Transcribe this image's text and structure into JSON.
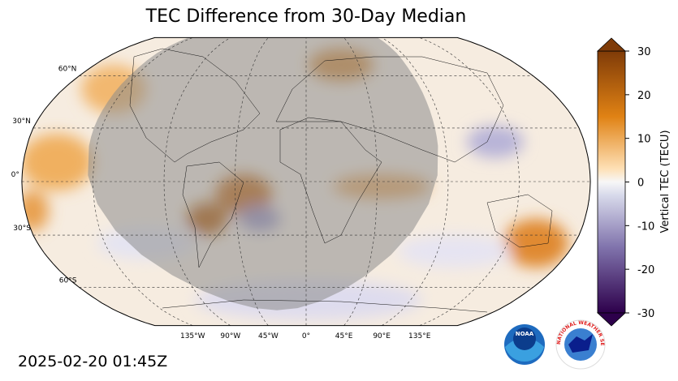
{
  "map": {
    "title": "TEC Difference from 30-Day Median",
    "timestamp": "2025-02-20 01:45Z",
    "latitude_labels": [
      "60°N",
      "30°N",
      "0°",
      "30°S",
      "60°S"
    ],
    "longitude_labels": [
      "135°W",
      "90°W",
      "45°W",
      "0°",
      "45°E",
      "90°E",
      "135°E"
    ]
  },
  "colorbar": {
    "label": "Vertical TEC (TECU)",
    "range": [
      -30,
      30
    ],
    "ticks": [
      -30,
      -20,
      -10,
      0,
      10,
      20,
      30
    ]
  },
  "logos": {
    "noaa": "NOAA",
    "nws": "NATIONAL WEATHER SERVICE"
  }
}
